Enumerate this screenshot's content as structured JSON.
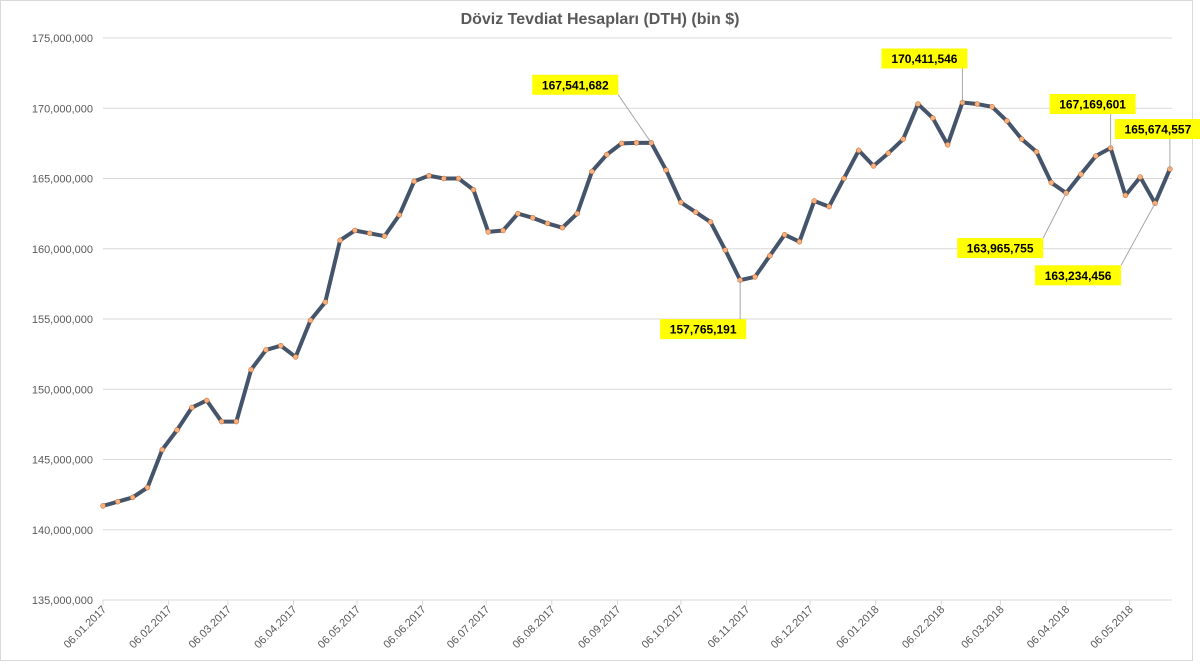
{
  "chart_data": {
    "type": "line",
    "title": "Döviz Tevdiat Hesapları (DTH) (bin $)",
    "x": [
      "2017-01-06",
      "2017-01-13",
      "2017-01-20",
      "2017-01-27",
      "2017-02-03",
      "2017-02-10",
      "2017-02-17",
      "2017-02-24",
      "2017-03-03",
      "2017-03-10",
      "2017-03-17",
      "2017-03-24",
      "2017-03-31",
      "2017-04-07",
      "2017-04-14",
      "2017-04-21",
      "2017-04-28",
      "2017-05-05",
      "2017-05-12",
      "2017-05-19",
      "2017-05-26",
      "2017-06-02",
      "2017-06-09",
      "2017-06-16",
      "2017-06-23",
      "2017-06-30",
      "2017-07-07",
      "2017-07-14",
      "2017-07-21",
      "2017-07-28",
      "2017-08-04",
      "2017-08-11",
      "2017-08-18",
      "2017-08-25",
      "2017-09-01",
      "2017-09-08",
      "2017-09-15",
      "2017-09-22",
      "2017-09-29",
      "2017-10-06",
      "2017-10-13",
      "2017-10-20",
      "2017-10-27",
      "2017-11-03",
      "2017-11-10",
      "2017-11-17",
      "2017-11-24",
      "2017-12-01",
      "2017-12-08",
      "2017-12-15",
      "2017-12-22",
      "2017-12-29",
      "2018-01-05",
      "2018-01-12",
      "2018-01-19",
      "2018-01-26",
      "2018-02-02",
      "2018-02-09",
      "2018-02-16",
      "2018-02-23",
      "2018-03-02",
      "2018-03-09",
      "2018-03-16",
      "2018-03-23",
      "2018-03-30",
      "2018-04-06",
      "2018-04-13",
      "2018-04-20",
      "2018-04-27",
      "2018-05-04",
      "2018-05-11",
      "2018-05-18",
      "2018-05-25"
    ],
    "series": [
      {
        "name": "DTH",
        "color": "#44546a",
        "marker_color": "#f4b183",
        "values": [
          141700000,
          142000000,
          142300000,
          143000000,
          145700000,
          147100000,
          148700000,
          149200000,
          147700000,
          147700000,
          151400000,
          152800000,
          153100000,
          152300000,
          154900000,
          156200000,
          160600000,
          161300000,
          161100000,
          160900000,
          162400000,
          164800000,
          165200000,
          165000000,
          165000000,
          164200000,
          161200000,
          161300000,
          162500000,
          162200000,
          161800000,
          161500000,
          162500000,
          165500000,
          166700000,
          167500000,
          167540000,
          167541682,
          165600000,
          163300000,
          162600000,
          161900000,
          159900000,
          157765191,
          158000000,
          159500000,
          161000000,
          160500000,
          163400000,
          163000000,
          165000000,
          167000000,
          165900000,
          166800000,
          167800000,
          170300000,
          169300000,
          167400000,
          170411546,
          170300000,
          170100000,
          169100000,
          167800000,
          166900000,
          164700000,
          163965755,
          165300000,
          166600000,
          167169601,
          163800000,
          165100000,
          163234456,
          165674557
        ],
        "value_labels": [
          null,
          null,
          null,
          null,
          null,
          null,
          null,
          null,
          null,
          null,
          null,
          null,
          null,
          null,
          null,
          null,
          null,
          null,
          null,
          null,
          null,
          null,
          null,
          null,
          null,
          null,
          null,
          null,
          null,
          null,
          null,
          null,
          null,
          null,
          null,
          null,
          null,
          "167,541,682",
          null,
          null,
          null,
          null,
          null,
          "157,765,191",
          null,
          null,
          null,
          null,
          null,
          null,
          null,
          null,
          null,
          null,
          null,
          null,
          null,
          null,
          "170,411,546",
          null,
          null,
          null,
          null,
          null,
          null,
          "163,965,755",
          null,
          null,
          "167,169,601",
          null,
          null,
          "163,234,456",
          "165,674,557"
        ]
      }
    ],
    "xlim": [
      "2017-01-06",
      "2018-05-26"
    ],
    "xticks": [
      {
        "value": "2017-01-06",
        "label": "06.01.2017"
      },
      {
        "value": "2017-02-06",
        "label": "06.02.2017"
      },
      {
        "value": "2017-03-06",
        "label": "06.03.2017"
      },
      {
        "value": "2017-04-06",
        "label": "06.04.2017"
      },
      {
        "value": "2017-05-06",
        "label": "06.05.2017"
      },
      {
        "value": "2017-06-06",
        "label": "06.06.2017"
      },
      {
        "value": "2017-07-06",
        "label": "06.07.2017"
      },
      {
        "value": "2017-08-06",
        "label": "06.08.2017"
      },
      {
        "value": "2017-09-06",
        "label": "06.09.2017"
      },
      {
        "value": "2017-10-06",
        "label": "06.10.2017"
      },
      {
        "value": "2017-11-06",
        "label": "06.11.2017"
      },
      {
        "value": "2017-12-06",
        "label": "06.12.2017"
      },
      {
        "value": "2018-01-06",
        "label": "06.01.2018"
      },
      {
        "value": "2018-02-06",
        "label": "06.02.2018"
      },
      {
        "value": "2018-03-06",
        "label": "06.03.2018"
      },
      {
        "value": "2018-04-06",
        "label": "06.04.2018"
      },
      {
        "value": "2018-05-06",
        "label": "06.05.2018"
      }
    ],
    "ylim": [
      135000000,
      175000000
    ],
    "yticks": [
      {
        "value": 135000000,
        "label": "135,000,000"
      },
      {
        "value": 140000000,
        "label": "140,000,000"
      },
      {
        "value": 145000000,
        "label": "145,000,000"
      },
      {
        "value": 150000000,
        "label": "150,000,000"
      },
      {
        "value": 155000000,
        "label": "155,000,000"
      },
      {
        "value": 160000000,
        "label": "160,000,000"
      },
      {
        "value": 165000000,
        "label": "165,000,000"
      },
      {
        "value": 170000000,
        "label": "170,000,000"
      },
      {
        "value": 175000000,
        "label": "175,000,000"
      }
    ],
    "grid": true,
    "label_color": "#ffff00"
  }
}
